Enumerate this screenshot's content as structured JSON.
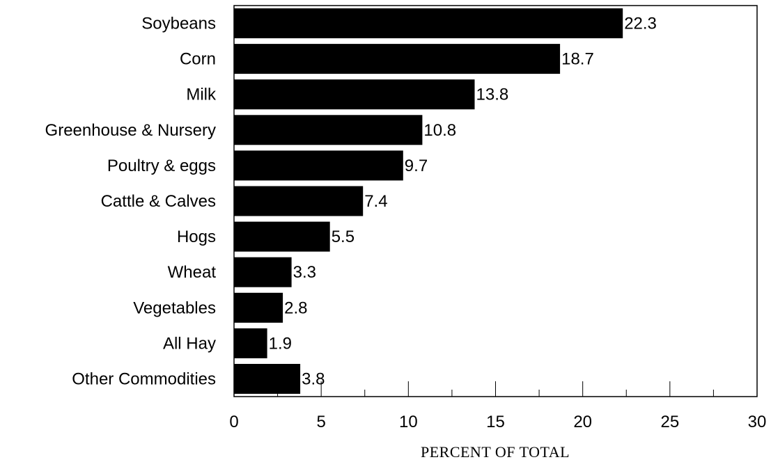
{
  "chart_data": {
    "type": "bar",
    "orientation": "horizontal",
    "categories": [
      "Soybeans",
      "Corn",
      "Milk",
      "Greenhouse & Nursery",
      "Poultry & eggs",
      "Cattle & Calves",
      "Hogs",
      "Wheat",
      "Vegetables",
      "All Hay",
      "Other Commodities"
    ],
    "values": [
      22.3,
      18.7,
      13.8,
      10.8,
      9.7,
      7.4,
      5.5,
      3.3,
      2.8,
      1.9,
      3.8
    ],
    "value_labels": [
      "22.3",
      "18.7",
      "13.8",
      "10.8",
      "9.7",
      "7.4",
      "5.5",
      "3.3",
      "2.8",
      "1.9",
      "3.8"
    ],
    "xlim": [
      0,
      30
    ],
    "xticks": [
      0,
      5,
      10,
      15,
      20,
      25,
      30
    ],
    "xtick_labels": [
      "0",
      "5",
      "10",
      "15",
      "20",
      "25",
      "30"
    ],
    "minor_ticks": [
      2.5,
      7.5,
      12.5,
      17.5,
      22.5,
      27.5
    ],
    "xlabel": "PERCENT OF TOTAL",
    "ylabel": "",
    "title": "",
    "grid": false,
    "bar_color": "#000000"
  }
}
